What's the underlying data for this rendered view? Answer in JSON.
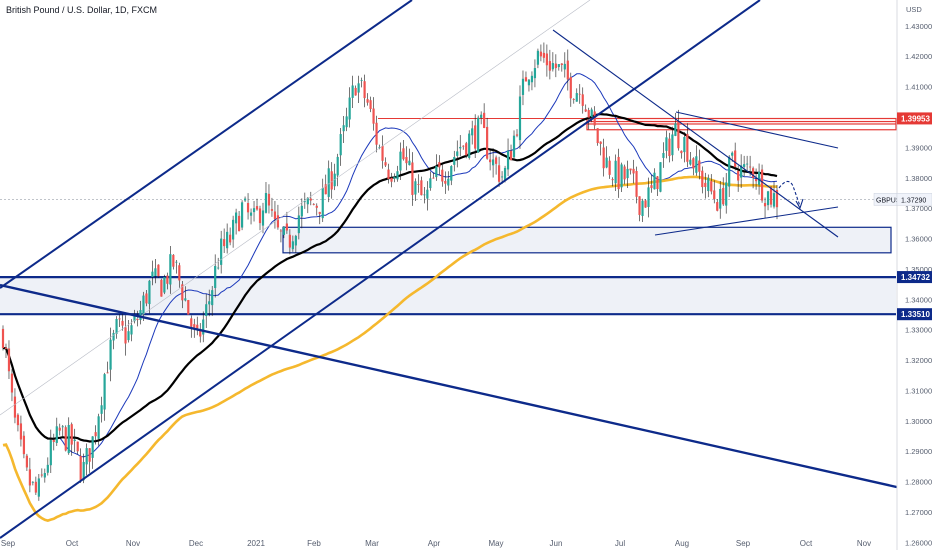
{
  "chart_data": {
    "type": "candlestick",
    "title": "British Pound / U.S. Dollar, 1D, FXCM",
    "currency": "USD",
    "symbol": "GBPUSD",
    "last_price": "1.37290",
    "ylim": [
      1.2575,
      1.4385
    ],
    "y_ticks": [
      "1.43000",
      "1.42000",
      "1.41000",
      "1.40000",
      "1.39000",
      "1.38000",
      "1.37000",
      "1.36000",
      "1.35000",
      "1.34000",
      "1.33000",
      "1.32000",
      "1.31000",
      "1.30000",
      "1.29000",
      "1.28000",
      "1.27000",
      "1.26000"
    ],
    "x_tick_labels": [
      "Sep",
      "Oct",
      "Nov",
      "Dec",
      "2021",
      "Feb",
      "Mar",
      "Apr",
      "May",
      "Jun",
      "Jul",
      "Aug",
      "Sep",
      "Oct",
      "Nov"
    ],
    "price_tags": [
      {
        "label": "1.39953",
        "value": 1.39953,
        "color": "#e53935"
      },
      {
        "label": "1.34732",
        "value": 1.34732,
        "color": "#0d2a8a"
      },
      {
        "label": "1.33510",
        "value": 1.3351,
        "color": "#0d2a8a"
      }
    ],
    "candles_summary": {
      "start": "2020-09",
      "end": "2021-09",
      "anchor_closes": [
        1.329,
        1.3,
        1.282,
        1.275,
        1.288,
        1.296,
        1.293,
        1.283,
        1.295,
        1.317,
        1.33,
        1.328,
        1.335,
        1.346,
        1.345,
        1.352,
        1.34,
        1.325,
        1.338,
        1.355,
        1.36,
        1.37,
        1.365,
        1.373,
        1.362,
        1.358,
        1.368,
        1.371,
        1.372,
        1.382,
        1.395,
        1.412,
        1.405,
        1.39,
        1.382,
        1.388,
        1.378,
        1.372,
        1.38,
        1.383,
        1.39,
        1.393,
        1.396,
        1.385,
        1.38,
        1.395,
        1.415,
        1.42,
        1.418,
        1.415,
        1.41,
        1.408,
        1.395,
        1.385,
        1.38,
        1.38,
        1.372,
        1.375,
        1.386,
        1.396,
        1.391,
        1.382,
        1.376,
        1.372,
        1.385,
        1.382,
        1.383,
        1.375,
        1.373
      ]
    },
    "colors": {
      "up": "#26a69a",
      "down": "#ef5350",
      "wick": "#1a1a1a",
      "ma50": "#1c39bb",
      "ma100": "#000000",
      "ma200": "#f5b82e",
      "trend": "#0d2a8a"
    }
  }
}
